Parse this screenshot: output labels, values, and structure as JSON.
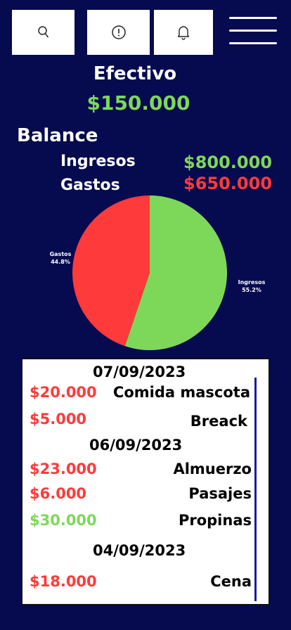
{
  "colors": {
    "background": "#060a4f",
    "income": "#7dd85a",
    "expense": "#ff3a3a"
  },
  "toolbar": {
    "search_icon": "search-icon",
    "info_icon": "alert-circle-icon",
    "bell_icon": "bell-icon",
    "menu_icon": "hamburger-menu-icon"
  },
  "cash": {
    "label": "Efectivo",
    "amount": "$150.000"
  },
  "balance": {
    "title": "Balance",
    "income_label": "Ingresos",
    "income_amount": "$800.000",
    "expense_label": "Gastos",
    "expense_amount": "$650.000"
  },
  "chart_data": {
    "type": "pie",
    "slices": [
      {
        "label": "Ingresos",
        "value": 55.2,
        "display": "55.2%",
        "color": "#7dd85a"
      },
      {
        "label": "Gastos",
        "value": 44.8,
        "display": "44.8%",
        "color": "#ff3a3a"
      }
    ]
  },
  "transactions": {
    "groups": [
      {
        "date": "07/09/2023",
        "items": [
          {
            "amount": "$20.000",
            "description": "Comida mascota",
            "type": "expense"
          },
          {
            "amount": "$5.000",
            "description": "Breack",
            "type": "expense"
          }
        ]
      },
      {
        "date": "06/09/2023",
        "items": [
          {
            "amount": "$23.000",
            "description": "Almuerzo",
            "type": "expense"
          },
          {
            "amount": "$6.000",
            "description": "Pasajes",
            "type": "expense"
          },
          {
            "amount": "$30.000",
            "description": "Propinas",
            "type": "income"
          }
        ]
      },
      {
        "date": "04/09/2023",
        "items": [
          {
            "amount": "$18.000",
            "description": "Cena",
            "type": "expense"
          }
        ]
      }
    ]
  }
}
